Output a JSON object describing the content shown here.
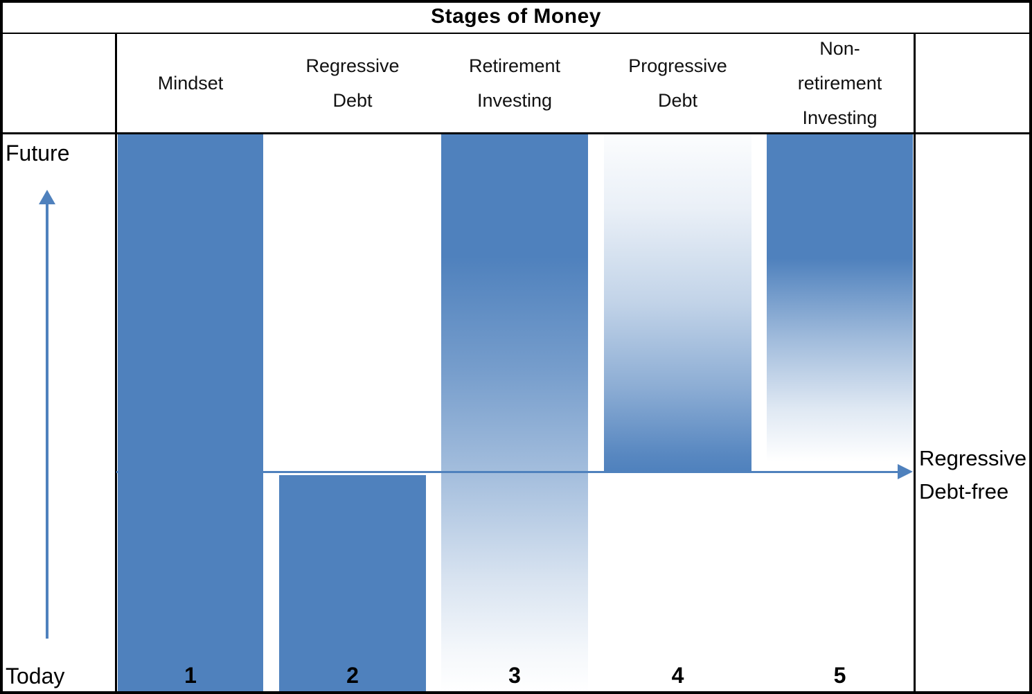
{
  "title": "Stages of Money",
  "y_axis": {
    "top_label": "Future",
    "bottom_label": "Today"
  },
  "threshold_label": "Regressive\nDebt-free",
  "columns": [
    {
      "header": "Mindset",
      "number": "1",
      "fill": "solid"
    },
    {
      "header": "Regressive\nDebt",
      "number": "2",
      "fill": "solid"
    },
    {
      "header": "Retirement\nInvesting",
      "number": "3",
      "fill": "gradient-solid-top-fading-down"
    },
    {
      "header": "Progressive\nDebt",
      "number": "4",
      "fill": "gradient-solid-bottom-fading-up"
    },
    {
      "header": "Non-\nretirement\nInvesting",
      "number": "5",
      "fill": "gradient-solid-top-fading-down"
    }
  ],
  "colors": {
    "bar-blue": "#4f81bd",
    "arrow-blue": "#4f81bd",
    "grid-black": "#000000"
  }
}
